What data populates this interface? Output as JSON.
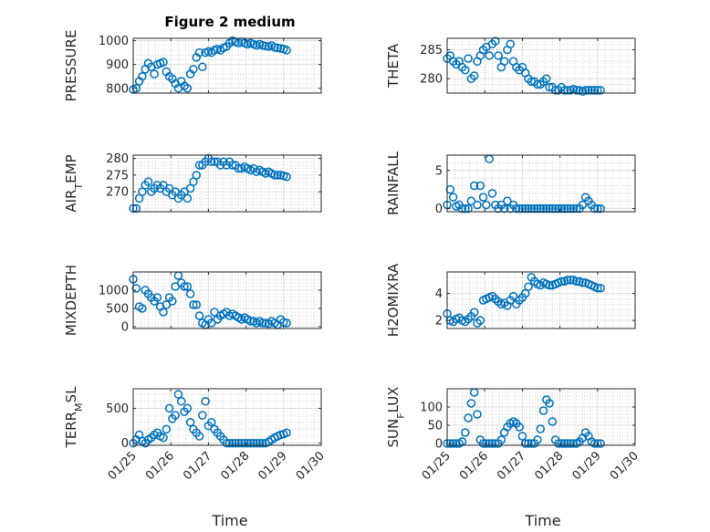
{
  "figure": {
    "title": "Figure 2 medium",
    "marker_color": "#0072BD"
  },
  "chart_data": [
    {
      "type": "scatter",
      "ylabel": "PRESSURE",
      "x_ticks": [
        "01/25",
        "01/26",
        "01/27",
        "01/28",
        "01/29",
        "01/30"
      ],
      "show_x_ticks": false,
      "xlim": [
        0,
        5
      ],
      "ylim": [
        780,
        1010
      ],
      "y_ticks": [
        800,
        900,
        1000
      ],
      "grid": true,
      "x": [
        0,
        0.08,
        0.16,
        0.24,
        0.32,
        0.4,
        0.48,
        0.56,
        0.64,
        0.72,
        0.8,
        0.88,
        0.96,
        1.04,
        1.12,
        1.2,
        1.28,
        1.36,
        1.44,
        1.52,
        1.6,
        1.68,
        1.76,
        1.84,
        1.92,
        2.0,
        2.08,
        2.16,
        2.24,
        2.32,
        2.4,
        2.48,
        2.56,
        2.64,
        2.72,
        2.8,
        2.88,
        2.96,
        3.04,
        3.12,
        3.2,
        3.28,
        3.36,
        3.44,
        3.52,
        3.6,
        3.68,
        3.76,
        3.84,
        3.92,
        4.0,
        4.08
      ],
      "y": [
        795,
        800,
        830,
        850,
        880,
        905,
        890,
        860,
        900,
        905,
        910,
        870,
        850,
        840,
        820,
        800,
        830,
        810,
        800,
        860,
        880,
        930,
        950,
        890,
        950,
        955,
        950,
        960,
        965,
        960,
        970,
        975,
        990,
        1000,
        995,
        990,
        995,
        990,
        985,
        990,
        985,
        980,
        985,
        980,
        978,
        975,
        980,
        972,
        970,
        968,
        965,
        960
      ]
    },
    {
      "type": "scatter",
      "ylabel": "THETA",
      "x_ticks": [
        "01/25",
        "01/26",
        "01/27",
        "01/28",
        "01/29",
        "01/30"
      ],
      "show_x_ticks": false,
      "xlim": [
        0,
        5
      ],
      "ylim": [
        277.5,
        287
      ],
      "y_ticks": [
        280,
        285
      ],
      "grid": true,
      "x": [
        0,
        0.08,
        0.16,
        0.24,
        0.32,
        0.4,
        0.48,
        0.56,
        0.64,
        0.72,
        0.8,
        0.88,
        0.96,
        1.04,
        1.12,
        1.2,
        1.28,
        1.36,
        1.44,
        1.52,
        1.6,
        1.68,
        1.76,
        1.84,
        1.92,
        2.0,
        2.08,
        2.16,
        2.24,
        2.32,
        2.4,
        2.48,
        2.56,
        2.64,
        2.72,
        2.8,
        2.88,
        2.96,
        3.04,
        3.12,
        3.2,
        3.28,
        3.36,
        3.44,
        3.52,
        3.6,
        3.68,
        3.76,
        3.84,
        3.92,
        4.0,
        4.08
      ],
      "y": [
        283.5,
        284,
        283,
        282.5,
        283,
        282,
        281.5,
        283.5,
        280,
        280.5,
        283,
        284,
        285,
        285.5,
        284,
        286,
        286.5,
        284,
        282,
        283,
        285,
        286,
        283,
        282,
        281.5,
        282,
        281,
        280,
        279.5,
        279.5,
        279,
        279,
        279.5,
        280,
        278.5,
        278.5,
        278,
        278,
        278.5,
        278,
        278,
        278,
        278.2,
        278,
        278,
        277.8,
        278,
        278,
        278,
        278,
        278,
        278
      ]
    },
    {
      "type": "scatter",
      "ylabel": "AIR_TEMP",
      "ylabel_main": "AIR",
      "ylabel_sub": "T",
      "ylabel_rest": "EMP",
      "x_ticks": [
        "01/25",
        "01/26",
        "01/27",
        "01/28",
        "01/29",
        "01/30"
      ],
      "show_x_ticks": false,
      "xlim": [
        0,
        5
      ],
      "ylim": [
        264,
        281
      ],
      "y_ticks": [
        270,
        275,
        280
      ],
      "grid": true,
      "x": [
        0,
        0.08,
        0.16,
        0.24,
        0.32,
        0.4,
        0.48,
        0.56,
        0.64,
        0.72,
        0.8,
        0.88,
        0.96,
        1.04,
        1.12,
        1.2,
        1.28,
        1.36,
        1.44,
        1.52,
        1.6,
        1.68,
        1.76,
        1.84,
        1.92,
        2.0,
        2.08,
        2.16,
        2.24,
        2.32,
        2.4,
        2.48,
        2.56,
        2.64,
        2.72,
        2.8,
        2.88,
        2.96,
        3.04,
        3.12,
        3.2,
        3.28,
        3.36,
        3.44,
        3.52,
        3.6,
        3.68,
        3.76,
        3.84,
        3.92,
        4.0,
        4.08
      ],
      "y": [
        265,
        265,
        268,
        270,
        272,
        273,
        270,
        271,
        272,
        271,
        272,
        270,
        271,
        269,
        270,
        268,
        269,
        270,
        268,
        271,
        273,
        275,
        278,
        278,
        279,
        280,
        279,
        279,
        279,
        278,
        279,
        278,
        279,
        278,
        278,
        277,
        277,
        277.5,
        277,
        276.5,
        277,
        276,
        276.5,
        276,
        275.5,
        276,
        275.5,
        275,
        275,
        275,
        274.8,
        274.5
      ]
    },
    {
      "type": "scatter",
      "ylabel": "RAINFALL",
      "x_ticks": [
        "01/25",
        "01/26",
        "01/27",
        "01/28",
        "01/29",
        "01/30"
      ],
      "show_x_ticks": false,
      "xlim": [
        0,
        5
      ],
      "ylim": [
        -0.4,
        7
      ],
      "y_ticks": [
        0,
        5
      ],
      "grid": true,
      "x": [
        0,
        0.08,
        0.16,
        0.24,
        0.32,
        0.4,
        0.48,
        0.56,
        0.64,
        0.72,
        0.8,
        0.88,
        0.96,
        1.04,
        1.12,
        1.2,
        1.28,
        1.36,
        1.44,
        1.52,
        1.6,
        1.68,
        1.76,
        1.84,
        1.92,
        2.0,
        2.08,
        2.16,
        2.24,
        2.32,
        2.4,
        2.48,
        2.56,
        2.64,
        2.72,
        2.8,
        2.88,
        2.96,
        3.04,
        3.12,
        3.2,
        3.28,
        3.36,
        3.44,
        3.52,
        3.6,
        3.68,
        3.76,
        3.84,
        3.92,
        4.0,
        4.08
      ],
      "y": [
        0.5,
        2.5,
        1.5,
        0.3,
        0.5,
        0,
        0,
        0,
        1,
        3,
        0.5,
        3,
        1.5,
        0.5,
        6.5,
        2,
        0.5,
        0,
        0.5,
        0,
        1,
        0,
        0.5,
        0,
        0,
        0,
        0,
        0,
        0,
        0,
        0,
        0,
        0,
        0,
        0,
        0,
        0,
        0,
        0,
        0,
        0,
        0,
        0,
        0,
        0,
        0.5,
        1.5,
        1,
        0.5,
        0,
        0,
        0
      ]
    },
    {
      "type": "scatter",
      "ylabel": "MIXDEPTH",
      "x_ticks": [
        "01/25",
        "01/26",
        "01/27",
        "01/28",
        "01/29",
        "01/30"
      ],
      "show_x_ticks": false,
      "xlim": [
        0,
        5
      ],
      "ylim": [
        -50,
        1500
      ],
      "y_ticks": [
        0,
        500,
        1000
      ],
      "grid": true,
      "x": [
        0,
        0.08,
        0.16,
        0.24,
        0.32,
        0.4,
        0.48,
        0.56,
        0.64,
        0.72,
        0.8,
        0.88,
        0.96,
        1.04,
        1.12,
        1.2,
        1.28,
        1.36,
        1.44,
        1.52,
        1.6,
        1.68,
        1.76,
        1.84,
        1.92,
        2.0,
        2.08,
        2.16,
        2.24,
        2.32,
        2.4,
        2.48,
        2.56,
        2.64,
        2.72,
        2.8,
        2.88,
        2.96,
        3.04,
        3.12,
        3.2,
        3.28,
        3.36,
        3.44,
        3.52,
        3.6,
        3.68,
        3.76,
        3.84,
        3.92,
        4.0,
        4.08
      ],
      "y": [
        1300,
        1050,
        550,
        500,
        1000,
        900,
        800,
        700,
        800,
        550,
        400,
        600,
        800,
        700,
        1100,
        1400,
        1200,
        1100,
        1100,
        900,
        600,
        600,
        300,
        100,
        50,
        200,
        100,
        400,
        200,
        300,
        350,
        400,
        300,
        350,
        300,
        250,
        200,
        250,
        200,
        150,
        150,
        100,
        150,
        100,
        100,
        80,
        150,
        100,
        50,
        200,
        120,
        100
      ]
    },
    {
      "type": "scatter",
      "ylabel": "H2OMIXRA",
      "x_ticks": [
        "01/25",
        "01/26",
        "01/27",
        "01/28",
        "01/29",
        "01/30"
      ],
      "show_x_ticks": false,
      "xlim": [
        0,
        5
      ],
      "ylim": [
        1.4,
        5.6
      ],
      "y_ticks": [
        2,
        4
      ],
      "grid": true,
      "x": [
        0,
        0.08,
        0.16,
        0.24,
        0.32,
        0.4,
        0.48,
        0.56,
        0.64,
        0.72,
        0.8,
        0.88,
        0.96,
        1.04,
        1.12,
        1.2,
        1.28,
        1.36,
        1.44,
        1.52,
        1.6,
        1.68,
        1.76,
        1.84,
        1.92,
        2.0,
        2.08,
        2.16,
        2.24,
        2.32,
        2.4,
        2.48,
        2.56,
        2.64,
        2.72,
        2.8,
        2.88,
        2.96,
        3.04,
        3.12,
        3.2,
        3.28,
        3.36,
        3.44,
        3.52,
        3.6,
        3.68,
        3.76,
        3.84,
        3.92,
        4.0,
        4.08
      ],
      "y": [
        2.5,
        2.0,
        1.9,
        2.1,
        2.2,
        2.0,
        1.9,
        2.1,
        2.3,
        2.6,
        1.8,
        2.0,
        3.5,
        3.6,
        3.7,
        3.8,
        3.6,
        3.4,
        3.2,
        3.3,
        3.1,
        3.5,
        3.8,
        3.2,
        3.5,
        3.7,
        4.0,
        4.5,
        5.2,
        4.9,
        4.7,
        4.6,
        4.8,
        4.7,
        4.6,
        4.6,
        4.7,
        4.8,
        4.9,
        4.9,
        5.0,
        5.0,
        5.0,
        4.9,
        4.9,
        4.8,
        4.8,
        4.7,
        4.6,
        4.5,
        4.4,
        4.4
      ]
    },
    {
      "type": "scatter",
      "ylabel": "TERR_MSL",
      "ylabel_main": "TERR",
      "ylabel_sub": "M",
      "ylabel_rest": "SL",
      "x_ticks": [
        "01/25",
        "01/26",
        "01/27",
        "01/28",
        "01/29",
        "01/30"
      ],
      "show_x_ticks": true,
      "xlim": [
        0,
        5
      ],
      "ylim": [
        -30,
        780
      ],
      "y_ticks": [
        0,
        500
      ],
      "grid": true,
      "x": [
        0,
        0.08,
        0.16,
        0.24,
        0.32,
        0.4,
        0.48,
        0.56,
        0.64,
        0.72,
        0.8,
        0.88,
        0.96,
        1.04,
        1.12,
        1.2,
        1.28,
        1.36,
        1.44,
        1.52,
        1.6,
        1.68,
        1.76,
        1.84,
        1.92,
        2.0,
        2.08,
        2.16,
        2.24,
        2.32,
        2.4,
        2.48,
        2.56,
        2.64,
        2.72,
        2.8,
        2.88,
        2.96,
        3.04,
        3.12,
        3.2,
        3.28,
        3.36,
        3.44,
        3.52,
        3.6,
        3.68,
        3.76,
        3.84,
        3.92,
        4.0,
        4.08
      ],
      "y": [
        0,
        50,
        120,
        30,
        0,
        50,
        80,
        120,
        150,
        100,
        80,
        200,
        500,
        350,
        400,
        700,
        600,
        450,
        500,
        300,
        200,
        150,
        100,
        400,
        600,
        250,
        300,
        200,
        150,
        100,
        50,
        0,
        0,
        0,
        0,
        0,
        0,
        0,
        0,
        0,
        0,
        0,
        0,
        0,
        0,
        20,
        50,
        80,
        100,
        120,
        130,
        150
      ]
    },
    {
      "type": "scatter",
      "ylabel": "SUN_FLUX",
      "ylabel_main": "SUN",
      "ylabel_sub": "F",
      "ylabel_rest": "LUX",
      "x_ticks": [
        "01/25",
        "01/26",
        "01/27",
        "01/28",
        "01/29",
        "01/30"
      ],
      "show_x_ticks": true,
      "xlim": [
        0,
        5
      ],
      "ylim": [
        -5,
        150
      ],
      "y_ticks": [
        0,
        50,
        100
      ],
      "grid": true,
      "x": [
        0,
        0.08,
        0.16,
        0.24,
        0.32,
        0.4,
        0.48,
        0.56,
        0.64,
        0.72,
        0.8,
        0.88,
        0.96,
        1.04,
        1.12,
        1.2,
        1.28,
        1.36,
        1.44,
        1.52,
        1.6,
        1.68,
        1.76,
        1.84,
        1.92,
        2.0,
        2.08,
        2.16,
        2.24,
        2.32,
        2.4,
        2.48,
        2.56,
        2.64,
        2.72,
        2.8,
        2.88,
        2.96,
        3.04,
        3.12,
        3.2,
        3.28,
        3.36,
        3.44,
        3.52,
        3.6,
        3.68,
        3.76,
        3.84,
        3.92,
        4.0,
        4.08
      ],
      "y": [
        0,
        0,
        0,
        0,
        0,
        5,
        30,
        70,
        110,
        140,
        80,
        10,
        0,
        0,
        0,
        0,
        0,
        0,
        10,
        30,
        45,
        55,
        60,
        55,
        45,
        20,
        0,
        0,
        0,
        0,
        10,
        40,
        90,
        120,
        110,
        60,
        10,
        0,
        0,
        0,
        0,
        0,
        0,
        0,
        5,
        15,
        30,
        20,
        5,
        0,
        0,
        0
      ]
    }
  ]
}
